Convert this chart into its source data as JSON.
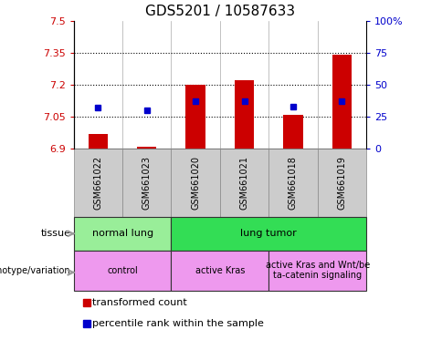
{
  "title": "GDS5201 / 10587633",
  "samples": [
    "GSM661022",
    "GSM661023",
    "GSM661020",
    "GSM661021",
    "GSM661018",
    "GSM661019"
  ],
  "red_values": [
    6.97,
    6.91,
    7.2,
    7.22,
    7.06,
    7.34
  ],
  "blue_percentiles": [
    32,
    30,
    37,
    37,
    33,
    37
  ],
  "ylim_left": [
    6.9,
    7.5
  ],
  "ylim_right": [
    0,
    100
  ],
  "yticks_left": [
    6.9,
    7.05,
    7.2,
    7.35,
    7.5
  ],
  "yticks_right": [
    0,
    25,
    50,
    75,
    100
  ],
  "ytick_labels_left": [
    "6.9",
    "7.05",
    "7.2",
    "7.35",
    "7.5"
  ],
  "ytick_labels_right": [
    "0",
    "25",
    "50",
    "75",
    "100%"
  ],
  "hlines": [
    7.05,
    7.2,
    7.35
  ],
  "tissue_groups": [
    {
      "label": "normal lung",
      "start": 0,
      "end": 2,
      "color": "#99EE99"
    },
    {
      "label": "lung tumor",
      "start": 2,
      "end": 6,
      "color": "#33DD55"
    }
  ],
  "genotype_groups": [
    {
      "label": "control",
      "start": 0,
      "end": 2,
      "color": "#EE99EE"
    },
    {
      "label": "active Kras",
      "start": 2,
      "end": 4,
      "color": "#EE99EE"
    },
    {
      "label": "active Kras and Wnt/be\nta-catenin signaling",
      "start": 4,
      "end": 6,
      "color": "#EE99EE"
    }
  ],
  "legend_items": [
    {
      "color": "#CC0000",
      "label": "transformed count"
    },
    {
      "color": "#0000CC",
      "label": "percentile rank within the sample"
    }
  ],
  "bar_width": 0.4,
  "bar_bottom": 6.9,
  "red_color": "#CC0000",
  "blue_color": "#0000CC",
  "left_tick_color": "#CC0000",
  "right_tick_color": "#0000CC",
  "sample_box_color": "#CCCCCC",
  "fig_width": 4.61,
  "fig_height": 3.84,
  "dpi": 100
}
